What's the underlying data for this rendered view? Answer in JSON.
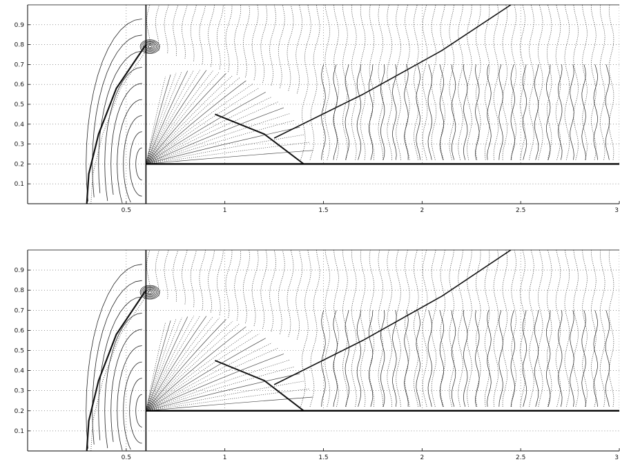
{
  "chart_data": [
    {
      "type": "contour",
      "title": "",
      "xlabel": "",
      "ylabel": "",
      "xlim": [
        0,
        3
      ],
      "ylim": [
        0,
        1
      ],
      "grid": true,
      "x_ticks": [
        0.5,
        1,
        1.5,
        2,
        2.5,
        3
      ],
      "x_tick_labels": [
        "0.5",
        "1",
        "1.5",
        "2",
        "2.5",
        "3"
      ],
      "y_ticks": [
        0.1,
        0.2,
        0.3,
        0.4,
        0.5,
        0.6,
        0.7,
        0.8,
        0.9
      ],
      "y_tick_labels": [
        "0.1",
        "0.2",
        "0.3",
        "0.4",
        "0.5",
        "0.6",
        "0.7",
        "0.8",
        "0.9"
      ],
      "step": {
        "x": 0.6,
        "y": 0.2
      },
      "bow_shock": [
        [
          0.3,
          0.0
        ],
        [
          0.31,
          0.15
        ],
        [
          0.36,
          0.35
        ],
        [
          0.45,
          0.58
        ],
        [
          0.6,
          0.8
        ]
      ],
      "reflected_shock_lower": [
        [
          0.95,
          0.45
        ],
        [
          1.2,
          0.35
        ],
        [
          1.4,
          0.2
        ]
      ],
      "reflected_shock_upper": [
        [
          1.25,
          0.33
        ],
        [
          1.7,
          0.55
        ],
        [
          2.1,
          0.77
        ],
        [
          2.45,
          1.0
        ]
      ]
    },
    {
      "type": "contour",
      "title": "",
      "xlabel": "",
      "ylabel": "",
      "xlim": [
        0,
        3
      ],
      "ylim": [
        0,
        1
      ],
      "grid": true,
      "x_ticks": [
        0.5,
        1,
        1.5,
        2,
        2.5,
        3
      ],
      "x_tick_labels": [
        "0.5",
        "1",
        "1.5",
        "2",
        "2.5",
        "3"
      ],
      "y_ticks": [
        0.1,
        0.2,
        0.3,
        0.4,
        0.5,
        0.6,
        0.7,
        0.8,
        0.9
      ],
      "y_tick_labels": [
        "0.1",
        "0.2",
        "0.3",
        "0.4",
        "0.5",
        "0.6",
        "0.7",
        "0.8",
        "0.9"
      ],
      "step": {
        "x": 0.6,
        "y": 0.2
      },
      "bow_shock": [
        [
          0.3,
          0.0
        ],
        [
          0.31,
          0.15
        ],
        [
          0.36,
          0.35
        ],
        [
          0.45,
          0.58
        ],
        [
          0.6,
          0.8
        ]
      ],
      "reflected_shock_lower": [
        [
          0.95,
          0.45
        ],
        [
          1.2,
          0.35
        ],
        [
          1.4,
          0.2
        ]
      ],
      "reflected_shock_upper": [
        [
          1.25,
          0.33
        ],
        [
          1.7,
          0.55
        ],
        [
          2.1,
          0.77
        ],
        [
          2.45,
          1.0
        ]
      ]
    }
  ]
}
